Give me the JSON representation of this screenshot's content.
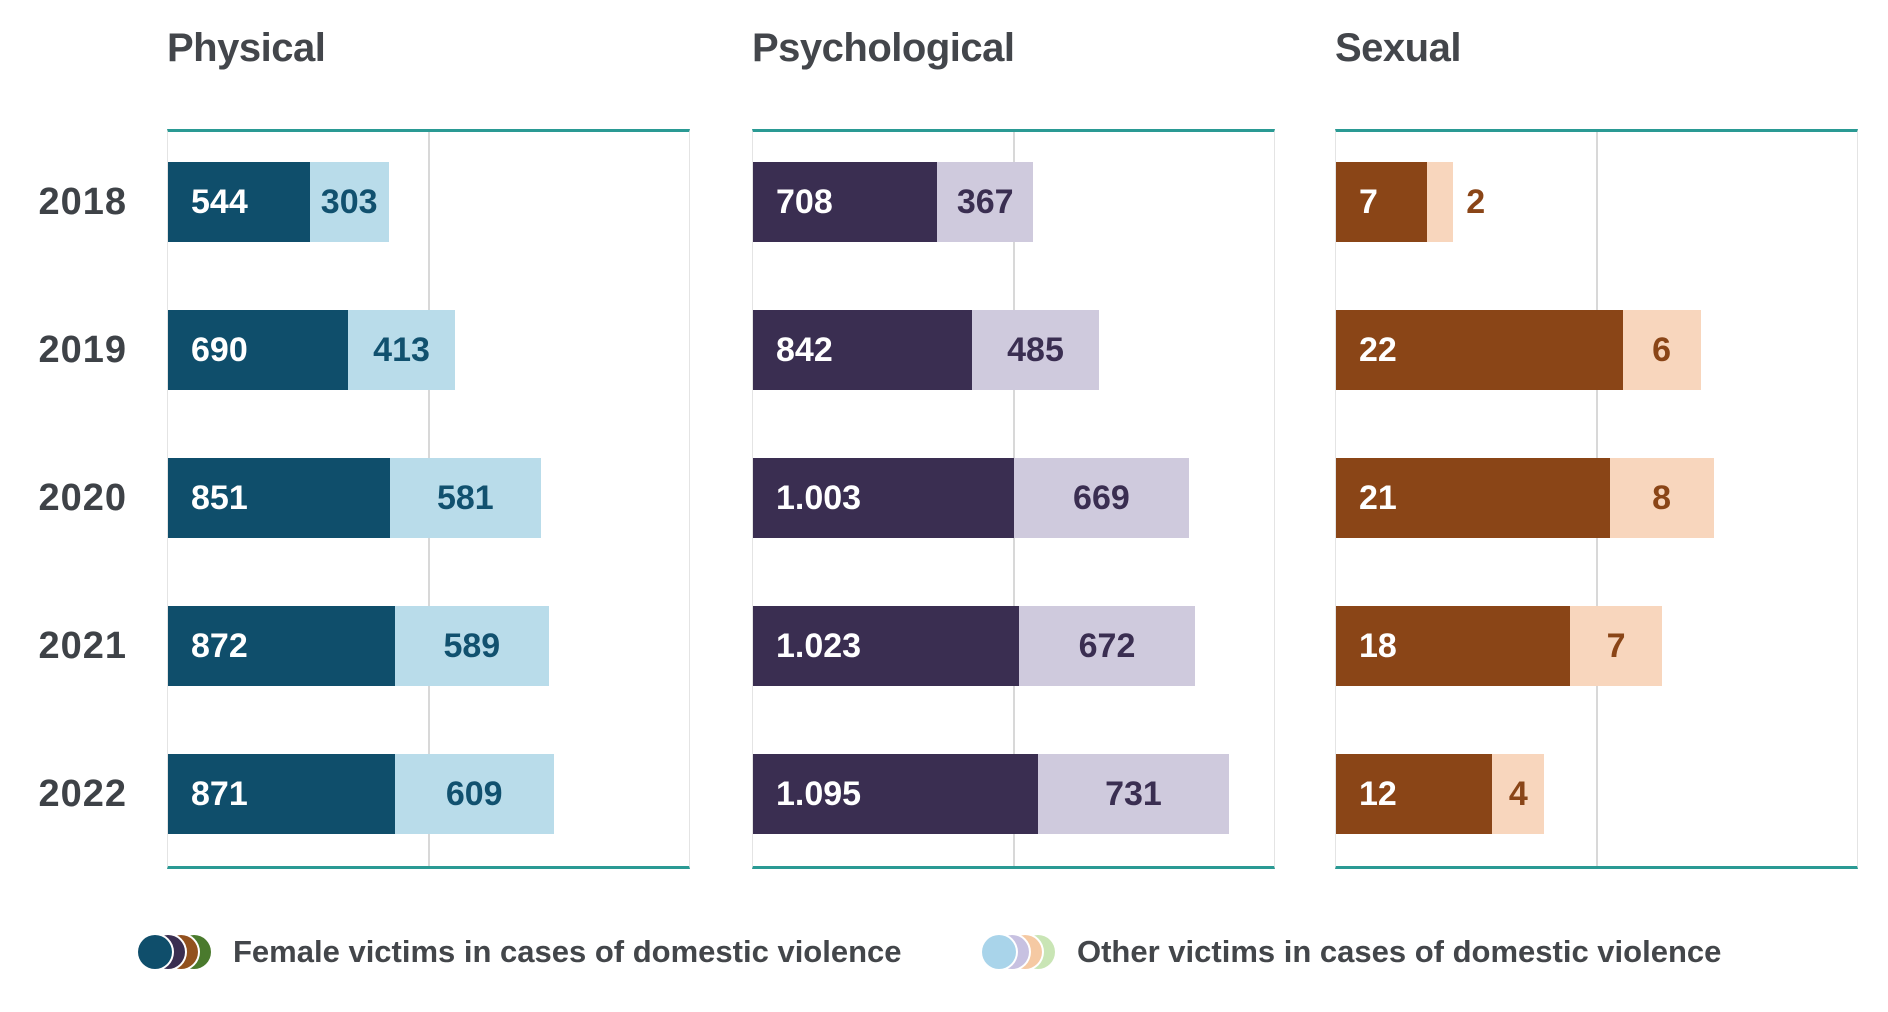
{
  "page": {
    "background": "#ffffff"
  },
  "chart_data": {
    "type": "bar",
    "orientation": "horizontal",
    "stacked": true,
    "grid": "single-center-gridline-per-panel",
    "legend_position": "bottom",
    "categories": [
      "2018",
      "2019",
      "2020",
      "2021",
      "2022"
    ],
    "axis_line_color": "#2a9a94",
    "grid_color": "#d8d8d8",
    "panel_edge_color": "#e4e4e4",
    "text_color": "#43464a",
    "panels": [
      {
        "title": "Physical",
        "axis_max": 2000,
        "gridline_value": 1000,
        "colors": {
          "female": "#0f4e6b",
          "other": "#b9dcea",
          "value_label_on_other": "#11516f"
        },
        "series": [
          {
            "name": "Female victims in cases of domestic violence",
            "values": [
              544,
              690,
              851,
              872,
              871
            ],
            "labels": [
              "544",
              "690",
              "851",
              "872",
              "871"
            ]
          },
          {
            "name": "Other victims in cases of domestic violence",
            "values": [
              303,
              413,
              581,
              589,
              609
            ],
            "labels": [
              "303",
              "413",
              "581",
              "589",
              "609"
            ]
          }
        ]
      },
      {
        "title": "Psychological",
        "axis_max": 2000,
        "gridline_value": 1000,
        "colors": {
          "female": "#3a2e51",
          "other": "#cfcadd",
          "value_label_on_other": "#3a2e51"
        },
        "series": [
          {
            "name": "Female victims in cases of domestic violence",
            "values": [
              708,
              842,
              1003,
              1023,
              1095
            ],
            "labels": [
              "708",
              "842",
              "1.003",
              "1.023",
              "1.095"
            ]
          },
          {
            "name": "Other victims in cases of domestic violence",
            "values": [
              367,
              485,
              669,
              672,
              731
            ],
            "labels": [
              "367",
              "485",
              "669",
              "672",
              "731"
            ]
          }
        ]
      },
      {
        "title": "Sexual",
        "axis_max": 40,
        "gridline_value": 20,
        "colors": {
          "female": "#8a4517",
          "other": "#f8d6bd",
          "value_label_on_other": "#8a4517"
        },
        "series": [
          {
            "name": "Female victims in cases of domestic violence",
            "values": [
              7,
              22,
              21,
              18,
              12
            ],
            "labels": [
              "7",
              "22",
              "21",
              "18",
              "12"
            ]
          },
          {
            "name": "Other victims in cases of domestic violence",
            "values": [
              2,
              6,
              8,
              7,
              4
            ],
            "labels": [
              "2",
              "6",
              "8",
              "7",
              "4"
            ]
          }
        ]
      }
    ],
    "legend": [
      {
        "label": "Female victims in cases of domestic violence",
        "swatch_colors": [
          "#0f4e6b",
          "#3a2e51",
          "#92511e",
          "#4a7a2d"
        ]
      },
      {
        "label": "Other victims in cases of domestic violence",
        "swatch_colors": [
          "#a9d4ea",
          "#c7c1e1",
          "#f5c9a3",
          "#c9e5b5"
        ]
      }
    ]
  }
}
